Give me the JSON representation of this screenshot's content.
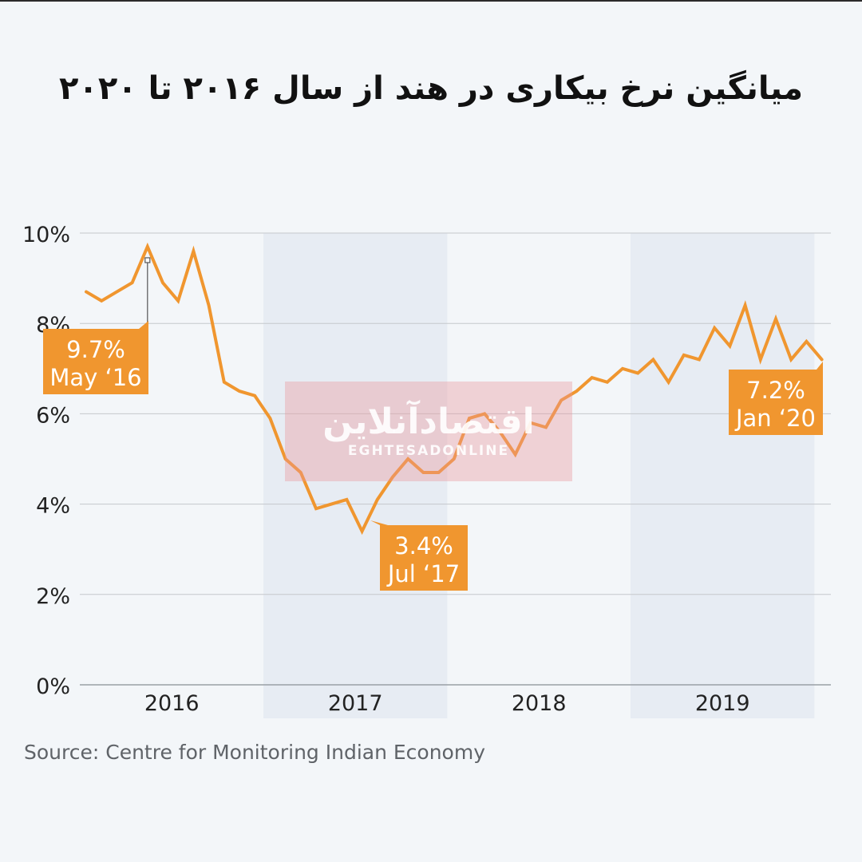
{
  "title": "میانگین نرخ بیکاری در هند از سال ۲۰۱۶ تا ۲۰۲۰",
  "source": "Source: Centre for Monitoring Indian Economy",
  "watermark": {
    "main": "اقتصادآنلاین",
    "sub": "EGHTESADONLINE"
  },
  "colors": {
    "line": "#f0962f",
    "band": "#e7ecf3",
    "grid": "#c5c8cc",
    "background": "#f3f6f9"
  },
  "chart_data": {
    "type": "line",
    "ylim": [
      0,
      10
    ],
    "yticks": [
      {
        "value": 0,
        "label": "0%"
      },
      {
        "value": 2,
        "label": "2%"
      },
      {
        "value": 4,
        "label": "4%"
      },
      {
        "value": 6,
        "label": "6%"
      },
      {
        "value": 8,
        "label": "8%"
      },
      {
        "value": 10,
        "label": "10%"
      }
    ],
    "xlabels": [
      "2016",
      "2017",
      "2018",
      "2019"
    ],
    "shaded_years": [
      "2017",
      "2019"
    ],
    "x": [
      "2016-01",
      "2016-02",
      "2016-03",
      "2016-04",
      "2016-05",
      "2016-06",
      "2016-07",
      "2016-08",
      "2016-09",
      "2016-10",
      "2016-11",
      "2016-12",
      "2017-01",
      "2017-02",
      "2017-03",
      "2017-04",
      "2017-05",
      "2017-06",
      "2017-07",
      "2017-08",
      "2017-09",
      "2017-10",
      "2017-11",
      "2017-12",
      "2018-01",
      "2018-02",
      "2018-03",
      "2018-04",
      "2018-05",
      "2018-06",
      "2018-07",
      "2018-08",
      "2018-09",
      "2018-10",
      "2018-11",
      "2018-12",
      "2019-01",
      "2019-02",
      "2019-03",
      "2019-04",
      "2019-05",
      "2019-06",
      "2019-07",
      "2019-08",
      "2019-09",
      "2019-10",
      "2019-11",
      "2019-12",
      "2020-01"
    ],
    "values": [
      8.7,
      8.5,
      8.7,
      8.9,
      9.7,
      8.9,
      8.5,
      9.6,
      8.4,
      6.7,
      6.5,
      6.4,
      5.9,
      5.0,
      4.7,
      3.9,
      4.0,
      4.1,
      3.4,
      4.1,
      4.6,
      5.0,
      4.7,
      4.7,
      5.0,
      5.9,
      6.0,
      5.6,
      5.1,
      5.8,
      5.7,
      6.3,
      6.5,
      6.8,
      6.7,
      7.0,
      6.9,
      7.2,
      6.7,
      7.3,
      7.2,
      7.9,
      7.5,
      8.4,
      7.2,
      8.1,
      7.2,
      7.6,
      7.2
    ],
    "annotations": [
      {
        "index": 4,
        "value_label": "9.7%",
        "date_label": "May ‘16"
      },
      {
        "index": 18,
        "value_label": "3.4%",
        "date_label": "Jul ‘17"
      },
      {
        "index": 48,
        "value_label": "7.2%",
        "date_label": "Jan ‘20"
      }
    ]
  }
}
